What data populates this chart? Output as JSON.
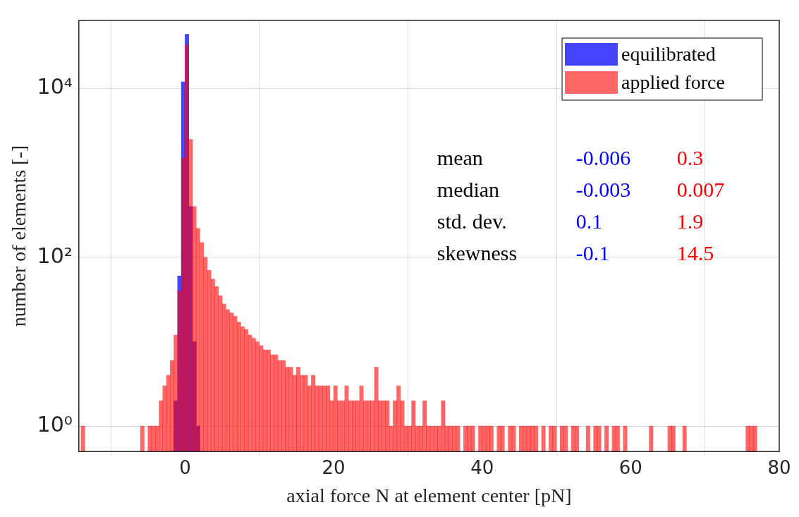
{
  "chart_data": {
    "type": "histogram",
    "xlabel": "axial force N at element center [pN]",
    "ylabel": "number of elements [-]",
    "xlim": [
      -14.3,
      80
    ],
    "xticks": [
      0,
      20,
      40,
      60,
      80
    ],
    "ylim": [
      0.5,
      64000
    ],
    "yticks": [
      {
        "value": 1,
        "label": "10⁰"
      },
      {
        "value": 100,
        "label": "10²"
      },
      {
        "value": 10000,
        "label": "10⁴"
      }
    ],
    "log": "y",
    "grid": true,
    "legend": "top right",
    "bins": [
      -14,
      -13.5,
      -13,
      -12.5,
      -12,
      -11.5,
      -11,
      -10.5,
      -10,
      -9.5,
      -9,
      -8.5,
      -8,
      -7.5,
      -7,
      -6.5,
      -6,
      -5.5,
      -5,
      -4.5,
      -4,
      -3.5,
      -3,
      -2.5,
      -2,
      -1.5,
      -1,
      -0.5,
      0,
      0.5,
      1,
      1.5,
      2,
      2.5,
      3,
      3.5,
      4,
      4.5,
      5,
      5.5,
      6,
      6.5,
      7,
      7.5,
      8,
      8.5,
      9,
      9.5,
      10,
      10.5,
      11,
      11.5,
      12,
      12.5,
      13,
      13.5,
      14,
      14.5,
      15,
      15.5,
      16,
      16.5,
      17,
      17.5,
      18,
      18.5,
      19,
      19.5,
      20,
      20.5,
      21,
      21.5,
      22,
      22.5,
      23,
      23.5,
      24,
      24.5,
      25,
      25.5,
      26,
      26.5,
      27,
      27.5,
      28,
      28.5,
      29,
      29.5,
      30,
      30.5,
      31,
      31.5,
      32,
      32.5,
      33,
      33.5,
      34,
      34.5,
      35,
      35.5,
      36,
      36.5,
      37,
      37.5,
      38,
      38.5,
      39,
      39.5,
      40,
      40.5,
      41,
      41.5,
      42,
      42.5,
      43,
      43.5,
      44,
      44.5,
      45,
      45.5,
      46,
      46.5,
      47,
      47.5,
      48,
      48.5,
      49,
      49.5,
      50,
      50.5,
      51,
      51.5,
      52,
      52.5,
      53,
      53.5,
      54,
      54.5,
      55,
      55.5,
      56,
      56.5,
      57,
      57.5,
      58,
      58.5,
      59,
      59.5,
      60,
      60.5,
      61,
      61.5,
      62,
      62.5,
      63,
      63.5,
      64,
      64.5,
      65,
      65.5,
      66,
      66.5,
      67,
      67.5,
      68,
      68.5,
      69,
      69.5,
      70,
      70.5,
      71,
      71.5,
      72,
      72.5,
      73,
      73.5,
      74,
      74.5,
      75,
      75.5,
      76,
      76.5,
      77,
      77.5,
      78
    ],
    "series": [
      {
        "name": "equilibrated",
        "color": "#4444ff",
        "values": [
          null,
          null,
          null,
          null,
          null,
          null,
          null,
          null,
          null,
          null,
          null,
          null,
          null,
          null,
          null,
          null,
          null,
          null,
          null,
          null,
          null,
          null,
          null,
          null,
          null,
          2,
          60,
          12000,
          44000,
          400,
          10,
          1,
          null,
          null,
          null,
          null,
          null,
          null,
          null,
          null,
          null,
          null,
          null,
          null,
          null,
          null,
          null,
          null,
          null,
          null,
          null,
          null,
          null,
          null,
          null,
          null,
          null,
          null,
          null,
          null,
          null,
          null,
          null,
          null,
          null,
          null,
          null,
          null,
          null,
          null,
          null,
          null,
          null,
          null,
          null,
          null,
          null,
          null,
          null,
          null,
          null,
          null,
          null,
          null,
          null,
          null,
          null,
          null,
          null,
          null,
          null,
          null,
          null,
          null,
          null,
          null,
          null,
          null,
          null,
          null,
          null,
          null,
          null,
          null,
          null,
          null,
          null,
          null,
          null,
          null,
          null,
          null,
          null,
          null,
          null,
          null,
          null,
          null,
          null,
          null,
          null,
          null,
          null,
          null,
          null,
          null,
          null,
          null,
          null,
          null,
          null,
          null,
          null,
          null,
          null,
          null,
          null,
          null,
          null,
          null,
          null,
          null,
          null,
          null,
          null,
          null,
          null,
          null,
          null,
          null,
          null,
          null,
          null,
          null,
          null,
          null,
          null,
          null,
          null,
          null,
          null,
          null,
          null,
          null,
          null,
          null,
          null,
          null,
          null,
          null,
          null,
          null,
          null,
          null,
          null,
          null,
          null,
          null,
          null,
          null,
          null,
          null,
          null,
          null
        ]
      },
      {
        "name": "applied force",
        "color": "#ff6666",
        "values": [
          1,
          null,
          null,
          null,
          null,
          null,
          null,
          null,
          null,
          null,
          null,
          null,
          null,
          null,
          null,
          null,
          1,
          null,
          1,
          1,
          1,
          2,
          3,
          4,
          6,
          12,
          40,
          1500,
          33000,
          2500,
          400,
          220,
          150,
          100,
          70,
          55,
          45,
          35,
          28,
          24,
          22,
          20,
          17,
          15,
          14,
          12,
          11,
          10,
          9,
          8,
          8,
          7,
          7,
          6,
          6,
          5,
          5,
          4,
          5,
          4,
          4,
          3,
          4,
          3,
          3,
          3,
          3,
          2,
          3,
          2,
          2,
          3,
          2,
          2,
          2,
          3,
          2,
          2,
          2,
          5,
          2,
          2,
          2,
          1,
          2,
          3,
          2,
          1,
          1,
          2,
          1,
          1,
          2,
          1,
          1,
          1,
          1,
          2,
          1,
          1,
          1,
          1,
          null,
          1,
          1,
          1,
          null,
          1,
          1,
          1,
          1,
          null,
          1,
          1,
          null,
          1,
          1,
          null,
          1,
          1,
          1,
          1,
          1,
          null,
          1,
          null,
          1,
          1,
          null,
          1,
          1,
          null,
          1,
          1,
          null,
          null,
          1,
          null,
          1,
          1,
          null,
          1,
          null,
          1,
          1,
          null,
          1,
          null,
          null,
          null,
          null,
          null,
          null,
          1,
          null,
          null,
          null,
          null,
          1,
          1,
          null,
          null,
          1,
          null,
          null,
          null,
          null,
          null,
          null,
          null,
          null,
          null,
          null,
          null,
          null,
          null,
          null,
          null,
          null,
          1,
          1,
          1,
          null,
          null
        ]
      }
    ],
    "annotations": [
      "mean",
      "-0.006",
      "0.3",
      "median",
      "-0.003",
      "0.007",
      "std. dev.",
      "0.1",
      "1.9",
      "skewness",
      "-0.1",
      "14.5"
    ]
  }
}
